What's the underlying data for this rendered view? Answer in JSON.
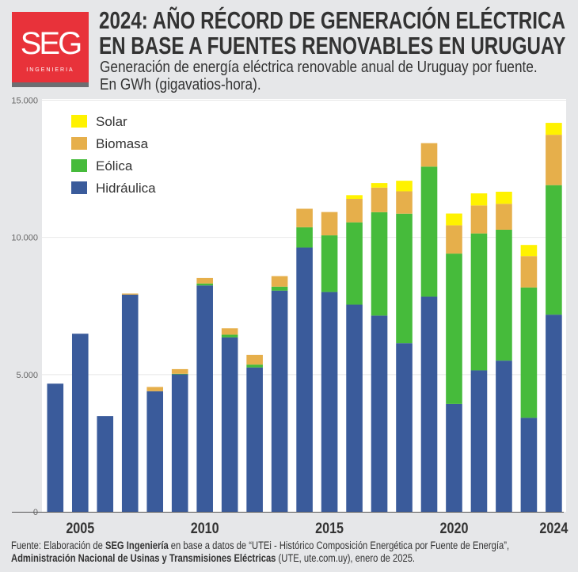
{
  "logo": {
    "brand": "SEG",
    "tagline": "INGENIERIA"
  },
  "header": {
    "title_line1": "2024: AÑO RÉCORD DE GENERACIÓN ELÉCTRICA",
    "title_line2": "EN BASE A FUENTES RENOVABLES EN URUGUAY",
    "subtitle": "Generación de energía eléctrica renovable anual de Uruguay por fuente. En GWh (gigavatios-hora)."
  },
  "footer": {
    "p1": "Fuente: Elaboración de ",
    "b1": "SEG Ingeniería",
    "p2": " en base a datos de “UTEi - Histórico Composición Energética por Fuente de Energía”, ",
    "b2": "Administración Nacional de Usinas y Transmisiones Eléctricas",
    "p3": " (UTE, ute.com.uy), enero de 2025."
  },
  "chart_data": {
    "type": "bar",
    "stacked": true,
    "title": "2024: AÑO RÉCORD DE GENERACIÓN ELÉCTRICA EN BASE A FUENTES RENOVABLES EN URUGUAY",
    "xlabel": "",
    "ylabel": "",
    "ylim": [
      0,
      15000
    ],
    "yticks": [
      0,
      5000,
      10000,
      15000
    ],
    "ytick_labels": [
      "0",
      "5.000",
      "10.000",
      "15.000"
    ],
    "xtick_labels": [
      {
        "year": 2005,
        "label": "2005"
      },
      {
        "year": 2010,
        "label": "2010"
      },
      {
        "year": 2015,
        "label": "2015"
      },
      {
        "year": 2020,
        "label": "2020"
      },
      {
        "year": 2024,
        "label": "2024"
      }
    ],
    "grid": true,
    "legend_position": "top-left",
    "categories": [
      2004,
      2005,
      2006,
      2007,
      2008,
      2009,
      2010,
      2011,
      2012,
      2013,
      2014,
      2015,
      2016,
      2017,
      2018,
      2019,
      2020,
      2021,
      2022,
      2023,
      2024
    ],
    "series": [
      {
        "name": "Hidráulica",
        "color": "#3a5b9b",
        "values": [
          4670,
          6490,
          3490,
          7915,
          4395,
          5010,
          8250,
          6355,
          5260,
          8060,
          9630,
          8010,
          7550,
          7150,
          6145,
          7840,
          3930,
          5155,
          5510,
          3425,
          7185
        ]
      },
      {
        "name": "Eólica",
        "color": "#46bb3b",
        "values": [
          0,
          0,
          0,
          0,
          0,
          20,
          70,
          100,
          105,
          145,
          740,
          2065,
          3000,
          3770,
          4720,
          4740,
          5480,
          4990,
          4770,
          4750,
          4720
        ]
      },
      {
        "name": "Biomasa",
        "color": "#e6af4b",
        "values": [
          0,
          0,
          0,
          40,
          155,
          170,
          200,
          235,
          355,
          385,
          675,
          850,
          855,
          895,
          815,
          855,
          1030,
          1020,
          945,
          1145,
          1835
        ]
      },
      {
        "name": "Solar",
        "color": "#fff200",
        "values": [
          0,
          0,
          0,
          0,
          0,
          0,
          0,
          0,
          0,
          0,
          0,
          0,
          135,
          165,
          385,
          0,
          430,
          440,
          440,
          405,
          435
        ]
      }
    ],
    "legend_order": [
      "Solar",
      "Biomasa",
      "Eólica",
      "Hidráulica"
    ]
  }
}
